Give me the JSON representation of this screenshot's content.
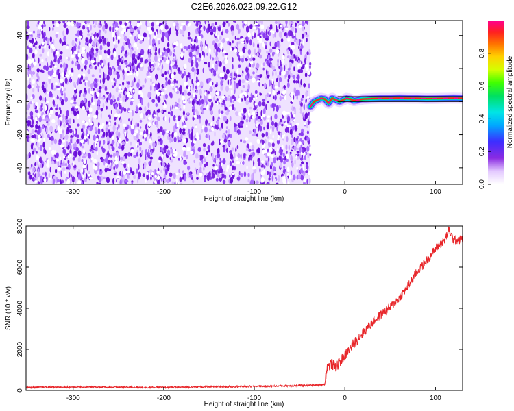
{
  "title": "C2E6.2026.022.09.22.G12",
  "chart_data": [
    {
      "type": "heatmap",
      "xlabel": "Height of straight line (km)",
      "ylabel": "Frequency (Hz)",
      "xlim": [
        -352,
        130
      ],
      "ylim": [
        -50,
        49
      ],
      "xticks": [
        -300,
        -200,
        -100,
        0,
        100
      ],
      "xtick_labels": [
        "-300",
        "-200",
        "-100",
        "0",
        "100"
      ],
      "yticks": [
        -40,
        -20,
        0,
        20,
        40
      ],
      "ytick_labels": [
        "-40",
        "-20",
        "0",
        "20",
        "40"
      ],
      "noise_region_x": [
        -352,
        -38
      ],
      "signal_trace": {
        "x": [
          -38,
          -34,
          -30,
          -26,
          -22,
          -18,
          -14,
          -10,
          -6,
          -2,
          2,
          6,
          10,
          20,
          30,
          40,
          50,
          60,
          70,
          80,
          90,
          100,
          110,
          120,
          130
        ],
        "y": [
          -3,
          0,
          1,
          2,
          1.5,
          -1,
          2,
          1,
          0,
          1,
          2,
          1.5,
          0.5,
          1.5,
          1.8,
          2,
          2,
          2.1,
          2,
          2,
          1.8,
          1.9,
          2,
          2.1,
          2
        ]
      },
      "horizontal_lines_y": [
        0,
        3
      ],
      "colorbar": {
        "label": "Normalized spectral amplitude",
        "range": [
          0,
          1
        ],
        "ticks": [
          0.0,
          0.2,
          0.4,
          0.6,
          0.8
        ],
        "tick_labels": [
          "0.0",
          "0.2",
          "0.4",
          "0.6",
          "0.8"
        ]
      }
    },
    {
      "type": "line",
      "xlabel": "Height of straight line (km)",
      "ylabel": "SNR (10 * v/v)",
      "xlim": [
        -352,
        130
      ],
      "ylim": [
        0,
        8000
      ],
      "xticks": [
        -300,
        -200,
        -100,
        0,
        100
      ],
      "xtick_labels": [
        "-300",
        "-200",
        "-100",
        "0",
        "100"
      ],
      "yticks": [
        0,
        2000,
        4000,
        6000,
        8000
      ],
      "ytick_labels": [
        "0",
        "2000",
        "4000",
        "6000",
        "8000"
      ],
      "series": [
        {
          "name": "SNR",
          "color": "#e8262a",
          "x": [
            -352,
            -300,
            -250,
            -200,
            -150,
            -100,
            -60,
            -30,
            -22,
            -20,
            -15,
            -10,
            -5,
            0,
            10,
            20,
            30,
            40,
            50,
            60,
            70,
            80,
            90,
            100,
            110,
            115,
            120,
            130
          ],
          "values": [
            150,
            170,
            160,
            150,
            180,
            200,
            230,
            260,
            300,
            1100,
            1300,
            1150,
            1400,
            1700,
            2300,
            2800,
            3300,
            3700,
            4050,
            4500,
            5100,
            5800,
            6300,
            6900,
            7300,
            7800,
            7300,
            7350
          ]
        }
      ]
    }
  ],
  "colors": {
    "noise_purple": "#7a22e0",
    "line_red": "#e8262a",
    "frame": "#000000"
  }
}
